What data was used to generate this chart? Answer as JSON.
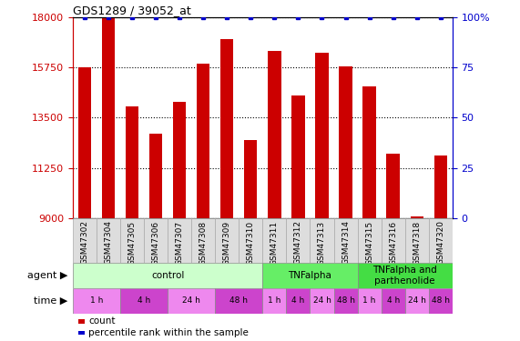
{
  "title": "GDS1289 / 39052_at",
  "samples": [
    "GSM47302",
    "GSM47304",
    "GSM47305",
    "GSM47306",
    "GSM47307",
    "GSM47308",
    "GSM47309",
    "GSM47310",
    "GSM47311",
    "GSM47312",
    "GSM47313",
    "GSM47314",
    "GSM47315",
    "GSM47316",
    "GSM47318",
    "GSM47320"
  ],
  "bar_values": [
    15750,
    18000,
    14000,
    12800,
    14200,
    15900,
    17000,
    12500,
    16500,
    14500,
    16400,
    15800,
    14900,
    11900,
    9100,
    11800
  ],
  "percentile_values": [
    100,
    100,
    100,
    100,
    100,
    100,
    100,
    100,
    100,
    100,
    100,
    100,
    100,
    100,
    100,
    100
  ],
  "bar_color": "#cc0000",
  "dot_color": "#0000cc",
  "ylim_left": [
    9000,
    18000
  ],
  "ylim_right": [
    0,
    100
  ],
  "yticks_left": [
    9000,
    11250,
    13500,
    15750,
    18000
  ],
  "yticks_right": [
    0,
    25,
    50,
    75,
    100
  ],
  "agent_groups": [
    {
      "label": "control",
      "start": 0,
      "end": 8,
      "color": "#ccffcc"
    },
    {
      "label": "TNFalpha",
      "start": 8,
      "end": 12,
      "color": "#66ee66"
    },
    {
      "label": "TNFalpha and\nparthenolide",
      "start": 12,
      "end": 16,
      "color": "#44dd44"
    }
  ],
  "time_groups": [
    {
      "label": "1 h",
      "start": 0,
      "end": 2,
      "color": "#ee88ee"
    },
    {
      "label": "4 h",
      "start": 2,
      "end": 4,
      "color": "#cc44cc"
    },
    {
      "label": "24 h",
      "start": 4,
      "end": 6,
      "color": "#ee88ee"
    },
    {
      "label": "48 h",
      "start": 6,
      "end": 8,
      "color": "#cc44cc"
    },
    {
      "label": "1 h",
      "start": 8,
      "end": 9,
      "color": "#ee88ee"
    },
    {
      "label": "4 h",
      "start": 9,
      "end": 10,
      "color": "#cc44cc"
    },
    {
      "label": "24 h",
      "start": 10,
      "end": 11,
      "color": "#ee88ee"
    },
    {
      "label": "48 h",
      "start": 11,
      "end": 12,
      "color": "#cc44cc"
    },
    {
      "label": "1 h",
      "start": 12,
      "end": 13,
      "color": "#ee88ee"
    },
    {
      "label": "4 h",
      "start": 13,
      "end": 14,
      "color": "#cc44cc"
    },
    {
      "label": "24 h",
      "start": 14,
      "end": 15,
      "color": "#ee88ee"
    },
    {
      "label": "48 h",
      "start": 15,
      "end": 16,
      "color": "#cc44cc"
    }
  ],
  "legend_count_color": "#cc0000",
  "legend_dot_color": "#0000cc",
  "sample_cell_color": "#dddddd",
  "sample_cell_edge": "#aaaaaa"
}
